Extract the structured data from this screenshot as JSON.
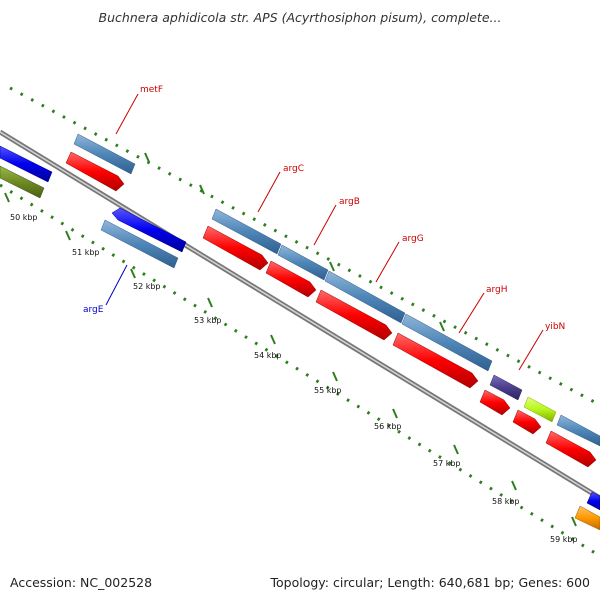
{
  "title": "Buchnera aphidicola str. APS (Acyrthosiphon pisum), complete...",
  "colors": {
    "background": "#ffffff",
    "backbone_outer": "#888888",
    "backbone_inner": "#cfcfcf",
    "tick": "#2e7d1e",
    "gene_forward_label": "#cc0000",
    "gene_reverse_label": "#0000cc",
    "feature_blue_steel": "#4f86b8",
    "feature_red": "#ff0000",
    "feature_blue": "#0000ee",
    "feature_olive": "#6e8b23",
    "feature_purple": "#4b3f8c",
    "feature_lime": "#b8f51a",
    "feature_orange": "#ff9900"
  },
  "kbp_labels": [
    "50 kbp",
    "51 kbp",
    "52 kbp",
    "53 kbp",
    "54 kbp",
    "55 kbp",
    "56 kbp",
    "57 kbp",
    "58 kbp",
    "59 kbp"
  ],
  "genes": [
    {
      "name": "metF",
      "strand": "forward"
    },
    {
      "name": "argC",
      "strand": "forward"
    },
    {
      "name": "argB",
      "strand": "forward"
    },
    {
      "name": "argG",
      "strand": "forward"
    },
    {
      "name": "argH",
      "strand": "forward"
    },
    {
      "name": "yibN",
      "strand": "forward"
    },
    {
      "name": "argE",
      "strand": "reverse"
    }
  ],
  "footer": {
    "accession": "Accession: NC_002528",
    "topology": "Topology: circular; Length: 640,681 bp; Genes: 600"
  }
}
